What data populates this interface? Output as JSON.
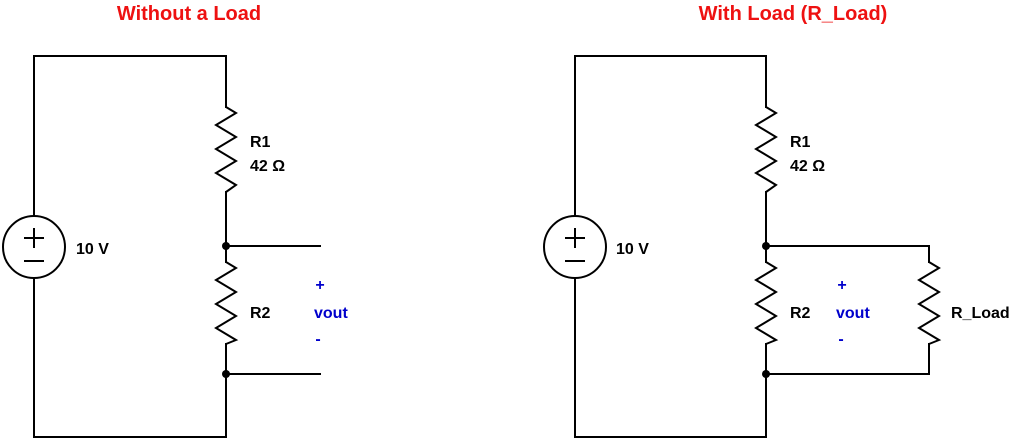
{
  "colors": {
    "title": "#ee1111",
    "vout": "#0000cc",
    "wire": "#000000"
  },
  "left_circuit": {
    "title": "Without a Load",
    "source": {
      "voltage": "10 V",
      "plus": "+",
      "minus": "−"
    },
    "r1": {
      "name": "R1",
      "value": "42 Ω"
    },
    "r2": {
      "name": "R2"
    },
    "vout": {
      "plus": "+",
      "label": "vout",
      "minus": "-"
    }
  },
  "right_circuit": {
    "title": "With Load (R_Load)",
    "source": {
      "voltage": "10 V",
      "plus": "+",
      "minus": "−"
    },
    "r1": {
      "name": "R1",
      "value": "42 Ω"
    },
    "r2": {
      "name": "R2"
    },
    "rload": {
      "name": "R_Load"
    },
    "vout": {
      "plus": "+",
      "label": "vout",
      "minus": "-"
    }
  }
}
